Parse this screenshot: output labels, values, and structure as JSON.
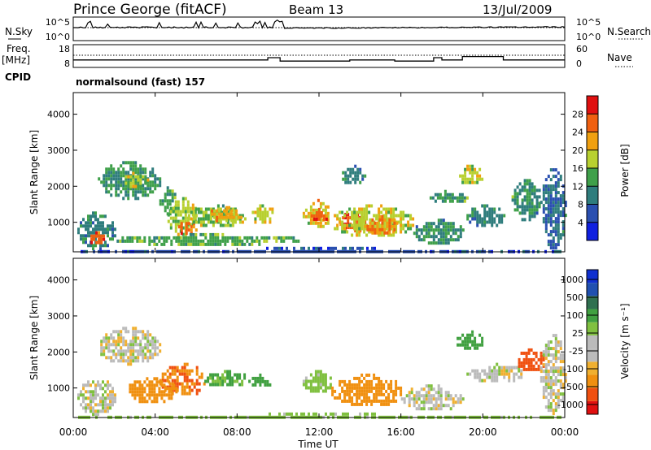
{
  "header": {
    "station": "Prince George (fitACF)",
    "beam": "Beam 13",
    "date": "13/Jul/2009"
  },
  "side_labels": {
    "nsky": "N.Sky",
    "freq": "Freq.",
    "freq_unit": "[MHz]",
    "cpid": "CPID",
    "nsearch": "N.Search",
    "nave": "Nave"
  },
  "cpid_text": "normalsound (fast) 157",
  "colors": {
    "power": [
      "#1020e0",
      "#2a4fb0",
      "#2f7d7d",
      "#3fa04a",
      "#b8d030",
      "#f0a010",
      "#f06010",
      "#e01010"
    ],
    "velocity": [
      "#e01010",
      "#f05010",
      "#f09010",
      "#f0b030",
      "#bbbbbb",
      "#bbbbbb",
      "#80c040",
      "#40a040",
      "#307050",
      "#2050b0",
      "#1030d0"
    ]
  },
  "chart_data": [
    {
      "type": "line",
      "panel": "noise",
      "ylabels_left": [
        "10^5",
        "10^0"
      ],
      "ylabels_right": [
        "10^5",
        "10^0"
      ],
      "series": [
        {
          "name": "N.Sky",
          "style": "solid"
        },
        {
          "name": "N.Search",
          "style": "dotted"
        }
      ]
    },
    {
      "type": "line",
      "panel": "frequency",
      "ylabels_left": [
        "18",
        "8"
      ],
      "ylabels_right": [
        "60",
        "0"
      ],
      "series": [
        {
          "name": "Freq.",
          "style": "solid",
          "x": [
            0,
            8,
            9.5,
            10,
            10.1,
            13,
            13.5,
            15.5,
            15.7,
            17.5,
            17.6,
            18,
            19,
            20.5,
            21,
            24
          ],
          "y": [
            12,
            12,
            13,
            13,
            11.5,
            11.5,
            12,
            12,
            11.5,
            11.5,
            13,
            12,
            13.5,
            13.5,
            12,
            12
          ]
        },
        {
          "name": "Nave",
          "style": "dotted"
        }
      ]
    },
    {
      "type": "heatmap",
      "panel": "power",
      "xlabel": "",
      "ylabel": "Slant Range [km]",
      "yticks": [
        1000,
        2000,
        3000,
        4000
      ],
      "ylim": [
        180,
        4600
      ],
      "xlim": [
        0,
        24
      ],
      "colorbar": {
        "label": "Power [dB]",
        "ticks": [
          4,
          8,
          12,
          16,
          20,
          24,
          28
        ],
        "range": [
          0,
          32
        ]
      },
      "regions": [
        {
          "x": [
            0.2,
            2.0
          ],
          "y": [
            300,
            1300
          ],
          "value": 10
        },
        {
          "x": [
            0.6,
            1.6
          ],
          "y": [
            450,
            750
          ],
          "value": 26
        },
        {
          "x": [
            1.2,
            4.2
          ],
          "y": [
            1700,
            2700
          ],
          "value": 12
        },
        {
          "x": [
            2.4,
            3.6
          ],
          "y": [
            2000,
            2400
          ],
          "value": 18
        },
        {
          "x": [
            4.2,
            5.0
          ],
          "y": [
            1200,
            2000
          ],
          "value": 14
        },
        {
          "x": [
            4.6,
            6.0
          ],
          "y": [
            600,
            1700
          ],
          "value": 17
        },
        {
          "x": [
            5.0,
            6.0
          ],
          "y": [
            700,
            1100
          ],
          "value": 26
        },
        {
          "x": [
            5.6,
            8.4
          ],
          "y": [
            900,
            1500
          ],
          "value": 16
        },
        {
          "x": [
            6.6,
            8.2
          ],
          "y": [
            1050,
            1450
          ],
          "value": 22
        },
        {
          "x": [
            8.6,
            9.8
          ],
          "y": [
            1000,
            1500
          ],
          "value": 18
        },
        {
          "x": [
            2.0,
            11.0
          ],
          "y": [
            400,
            700
          ],
          "value": 14
        },
        {
          "x": [
            11.2,
            12.6
          ],
          "y": [
            900,
            1650
          ],
          "value": 20
        },
        {
          "x": [
            11.6,
            12.4
          ],
          "y": [
            1050,
            1400
          ],
          "value": 26
        },
        {
          "x": [
            13.0,
            14.2
          ],
          "y": [
            750,
            1350
          ],
          "value": 26
        },
        {
          "x": [
            12.6,
            16.6
          ],
          "y": [
            600,
            1500
          ],
          "value": 18
        },
        {
          "x": [
            14.2,
            15.8
          ],
          "y": [
            700,
            1200
          ],
          "value": 24
        },
        {
          "x": [
            16.6,
            19.0
          ],
          "y": [
            400,
            1100
          ],
          "value": 12
        },
        {
          "x": [
            13.0,
            14.2
          ],
          "y": [
            2100,
            2600
          ],
          "value": 10
        },
        {
          "x": [
            17.4,
            19.2
          ],
          "y": [
            1550,
            1900
          ],
          "value": 12
        },
        {
          "x": [
            18.6,
            20.0
          ],
          "y": [
            2100,
            2600
          ],
          "value": 18
        },
        {
          "x": [
            19.2,
            21.0
          ],
          "y": [
            900,
            1500
          ],
          "value": 10
        },
        {
          "x": [
            21.4,
            22.8
          ],
          "y": [
            1100,
            2200
          ],
          "value": 12
        },
        {
          "x": [
            22.8,
            24.0
          ],
          "y": [
            300,
            2500
          ],
          "value": 8
        },
        {
          "x": [
            0,
            24
          ],
          "y": [
            180,
            320
          ],
          "value": 6
        }
      ]
    },
    {
      "type": "heatmap",
      "panel": "velocity",
      "xlabel": "Time UT",
      "ylabel": "Slant Range [km]",
      "xticks": [
        "00:00",
        "04:00",
        "08:00",
        "12:00",
        "16:00",
        "20:00",
        "00:00"
      ],
      "yticks": [
        1000,
        2000,
        3000,
        4000
      ],
      "ylim": [
        180,
        4600
      ],
      "xlim": [
        0,
        24
      ],
      "colorbar": {
        "label": "Velocity [m s⁻¹]",
        "ticks": [
          "1000",
          "500",
          "100",
          "25",
          "-25",
          "-100",
          "-500",
          "-1000"
        ]
      },
      "regions": [
        {
          "x": [
            0.2,
            2.0
          ],
          "y": [
            300,
            1300
          ],
          "value": 0
        },
        {
          "x": [
            1.2,
            4.2
          ],
          "y": [
            1700,
            2700
          ],
          "value": 0
        },
        {
          "x": [
            4.2,
            6.4
          ],
          "y": [
            800,
            1700
          ],
          "value": -300
        },
        {
          "x": [
            2.6,
            5.0
          ],
          "y": [
            600,
            1300
          ],
          "value": -150
        },
        {
          "x": [
            6.4,
            8.6
          ],
          "y": [
            1050,
            1500
          ],
          "value": 120
        },
        {
          "x": [
            8.6,
            9.6
          ],
          "y": [
            1000,
            1400
          ],
          "value": 200
        },
        {
          "x": [
            11.2,
            12.6
          ],
          "y": [
            900,
            1500
          ],
          "value": 60
        },
        {
          "x": [
            12.6,
            16.0
          ],
          "y": [
            500,
            1400
          ],
          "value": -200
        },
        {
          "x": [
            16.0,
            19.0
          ],
          "y": [
            400,
            1100
          ],
          "value": 0
        },
        {
          "x": [
            18.6,
            20.0
          ],
          "y": [
            2100,
            2600
          ],
          "value": 150
        },
        {
          "x": [
            19.2,
            22.0
          ],
          "y": [
            1200,
            1700
          ],
          "value": 0
        },
        {
          "x": [
            21.6,
            23.0
          ],
          "y": [
            1500,
            2100
          ],
          "value": -600
        },
        {
          "x": [
            22.8,
            24.0
          ],
          "y": [
            300,
            2500
          ],
          "value": 0
        },
        {
          "x": [
            0,
            24
          ],
          "y": [
            180,
            320
          ],
          "value": 60
        }
      ]
    }
  ]
}
